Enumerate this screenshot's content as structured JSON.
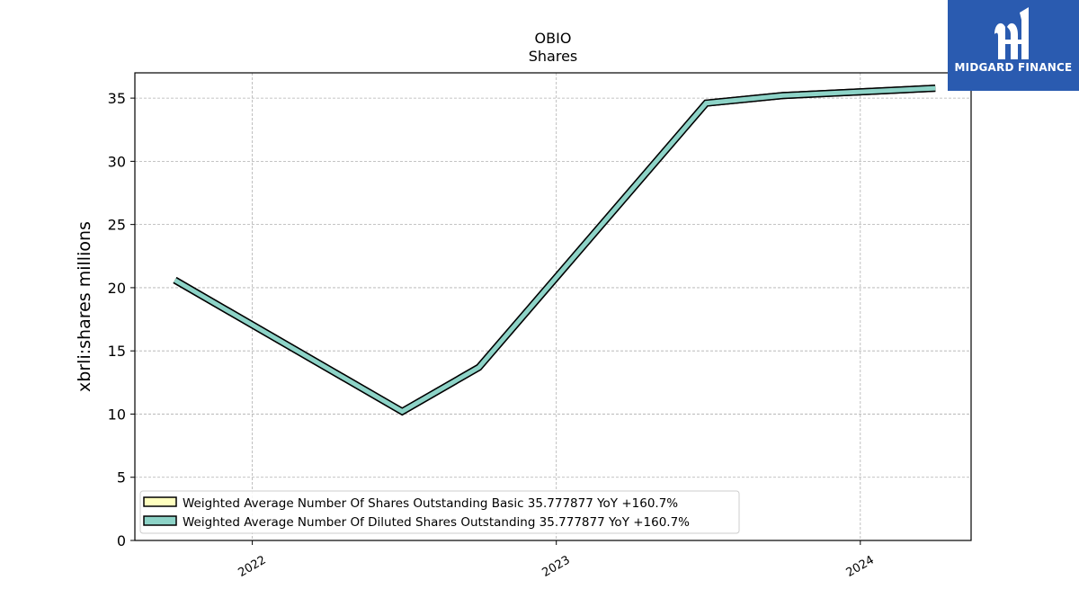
{
  "chart_data": {
    "type": "line",
    "title": "OBIO",
    "subtitle": "Shares",
    "ylabel": "xbrli:shares millions",
    "xlabel": "",
    "ylim": [
      0,
      37
    ],
    "yticks": [
      0,
      5,
      10,
      15,
      20,
      25,
      30,
      35
    ],
    "xlim": [
      "2021-08-13",
      "2024-05-13"
    ],
    "xticks": [
      {
        "date": "2022-01-01",
        "label": "2022"
      },
      {
        "date": "2023-01-01",
        "label": "2023"
      },
      {
        "date": "2024-01-01",
        "label": "2024"
      }
    ],
    "grid": true,
    "legend_position": "lower-left",
    "series": [
      {
        "name": "Weighted Average Number Of Shares Outstanding Basic",
        "legend_label": "Weighted Average Number Of Shares Outstanding Basic  35.777877 YoY +160.7%",
        "color": "#ffffbf",
        "x": [
          "2021-09-30",
          "2022-06-30",
          "2022-09-30",
          "2023-06-30",
          "2023-09-30",
          "2024-03-31"
        ],
        "values": [
          20.6,
          10.2,
          13.7,
          34.6,
          35.2,
          35.78
        ]
      },
      {
        "name": "Weighted Average Number Of Diluted Shares Outstanding",
        "legend_label": "Weighted Average Number Of Diluted Shares Outstanding  35.777877 YoY +160.7%",
        "color": "#8dd3c7",
        "x": [
          "2021-09-30",
          "2022-06-30",
          "2022-09-30",
          "2023-06-30",
          "2023-09-30",
          "2024-03-31"
        ],
        "values": [
          20.6,
          10.2,
          13.7,
          34.6,
          35.2,
          35.78
        ]
      }
    ]
  },
  "logo": {
    "text": "MIDGARD FINANCE",
    "background": "#2a5bb0"
  }
}
